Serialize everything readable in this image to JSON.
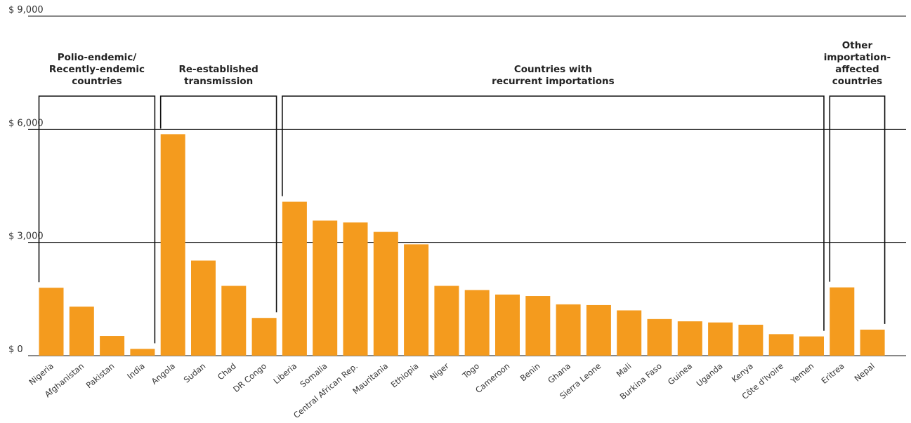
{
  "chart_data": {
    "type": "bar",
    "title": "",
    "xlabel": "",
    "ylabel": "",
    "ylim": [
      0,
      9000
    ],
    "grid": true,
    "y_ticks": [
      {
        "value": 0,
        "label": "$ 0"
      },
      {
        "value": 3000,
        "label": "$ 3,000"
      },
      {
        "value": 6000,
        "label": "$ 6,000"
      },
      {
        "value": 9000,
        "label": "$ 9,000"
      }
    ],
    "categories": [
      "Nigeria",
      "Afghanistan",
      "Pakistan",
      "India",
      "Angola",
      "Sudan",
      "Chad",
      "DR Congo",
      "Liberia",
      "Somalia",
      "Central African Rep.",
      "Mauritania",
      "Ethiopia",
      "Niger",
      "Togo",
      "Cameroon",
      "Benin",
      "Ghana",
      "Sierra Leone",
      "Mali",
      "Burkina Faso",
      "Guinea",
      "Uganda",
      "Kenya",
      "Côte d'Ivoire",
      "Yemen",
      "Eritrea",
      "Nepal"
    ],
    "values": [
      1800,
      1300,
      520,
      180,
      5870,
      2520,
      1850,
      1000,
      4080,
      3580,
      3530,
      3280,
      2950,
      1850,
      1740,
      1620,
      1580,
      1360,
      1340,
      1200,
      970,
      910,
      880,
      820,
      570,
      510,
      1810,
      690
    ],
    "bar_color": "#f49b1e",
    "groups": [
      {
        "label_lines": [
          "Polio-endemic/",
          "Recently-endemic",
          "countries"
        ],
        "start": 0,
        "end": 3
      },
      {
        "label_lines": [
          "Re-established",
          "transmission"
        ],
        "start": 4,
        "end": 7
      },
      {
        "label_lines": [
          "Countries with",
          "recurrent importations"
        ],
        "start": 8,
        "end": 25
      },
      {
        "label_lines": [
          "Other",
          "importation-",
          "affected",
          "countries"
        ],
        "start": 26,
        "end": 27
      }
    ]
  }
}
